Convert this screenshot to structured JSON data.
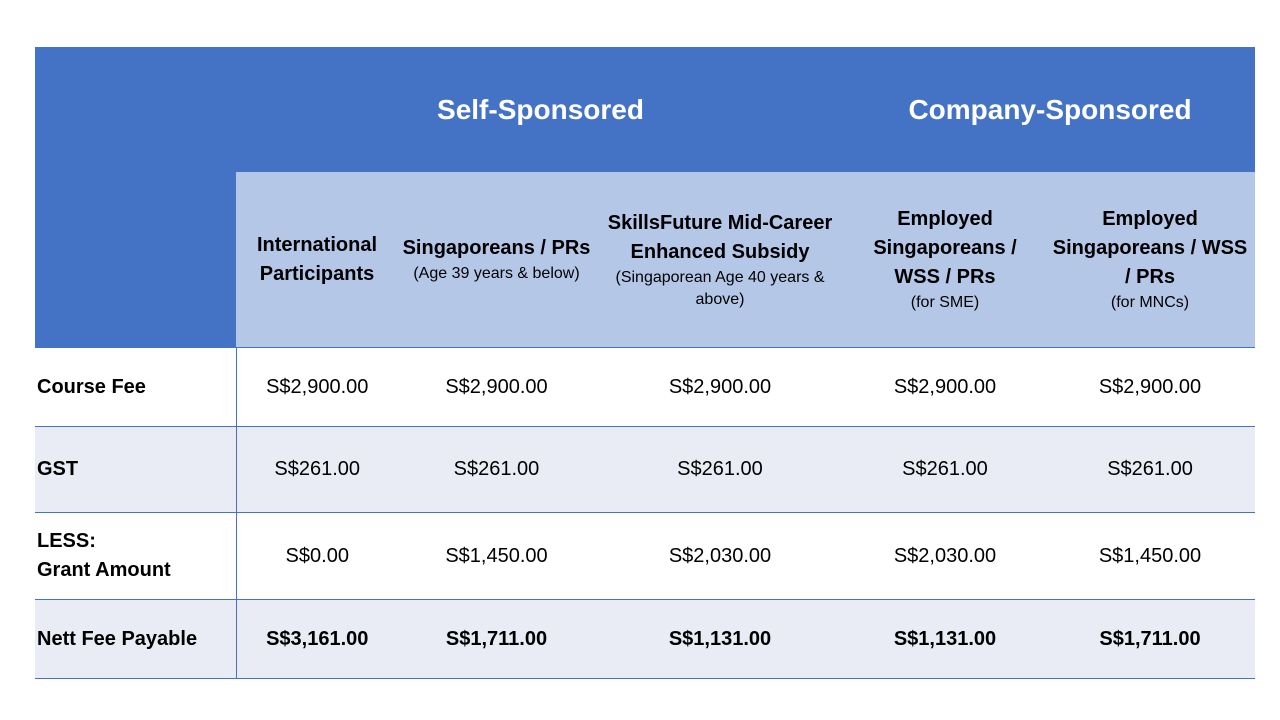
{
  "table": {
    "groups": [
      "Self-Sponsored",
      "Company-Sponsored"
    ],
    "columns": [
      {
        "title": "International Participants"
      },
      {
        "title": "Singaporeans / PRs",
        "note": "(Age 39 years & below)"
      },
      {
        "title": "SkillsFuture Mid-Career Enhanced Subsidy",
        "note": "(Singaporean Age 40 years & above)"
      },
      {
        "title": "Employed Singaporeans / WSS / PRs",
        "note": "(for SME)"
      },
      {
        "title": "Employed Singaporeans / WSS / PRs",
        "note": "(for MNCs)"
      }
    ],
    "rows": [
      {
        "label": [
          "Course Fee"
        ],
        "cells": [
          "S$2,900.00",
          "S$2,900.00",
          "S$2,900.00",
          "S$2,900.00",
          "S$2,900.00"
        ]
      },
      {
        "label": [
          "GST"
        ],
        "cells": [
          "S$261.00",
          "S$261.00",
          "S$261.00",
          "S$261.00",
          "S$261.00"
        ]
      },
      {
        "label": [
          "LESS:",
          "Grant Amount"
        ],
        "cells": [
          "S$0.00",
          "S$1,450.00",
          "S$2,030.00",
          "S$2,030.00",
          "S$1,450.00"
        ]
      },
      {
        "label": [
          "Nett Fee Payable"
        ],
        "cells": [
          "S$3,161.00",
          "S$1,711.00",
          "S$1,131.00",
          "S$1,131.00",
          "S$1,711.00"
        ],
        "bold": true
      }
    ]
  }
}
